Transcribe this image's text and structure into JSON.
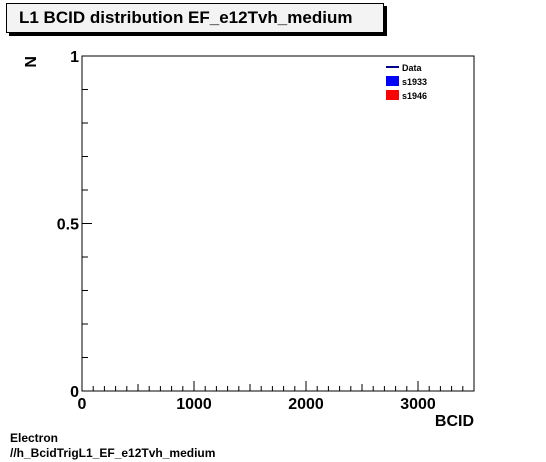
{
  "title": "L1 BCID distribution EF_e12Tvh_medium",
  "footer": {
    "line1": "Electron",
    "line2": "//h_BcidTrigL1_EF_e12Tvh_medium"
  },
  "chart_data": {
    "type": "line",
    "title": "L1 BCID distribution EF_e12Tvh_medium",
    "xlabel": "BCID",
    "ylabel": "N",
    "xlim": [
      0,
      3500
    ],
    "ylim": [
      0,
      1
    ],
    "x_ticks": [
      0,
      1000,
      2000,
      3000
    ],
    "x_tick_labels": [
      "0",
      "1000",
      "2000",
      "3000"
    ],
    "y_ticks": [
      0,
      0.5,
      1
    ],
    "y_tick_labels": [
      "0",
      "0.5",
      "1"
    ],
    "grid": false,
    "legend_position": "top-right",
    "legend": [
      {
        "label": "Data",
        "style": "line",
        "color": "#00008b"
      },
      {
        "label": "s1933",
        "style": "fill",
        "color": "#0000ff"
      },
      {
        "label": "s1946",
        "style": "fill",
        "color": "#ff0000"
      }
    ],
    "series": [
      {
        "name": "Data",
        "x": [],
        "y": []
      },
      {
        "name": "s1933",
        "x": [],
        "y": []
      },
      {
        "name": "s1946",
        "x": [],
        "y": []
      }
    ]
  }
}
